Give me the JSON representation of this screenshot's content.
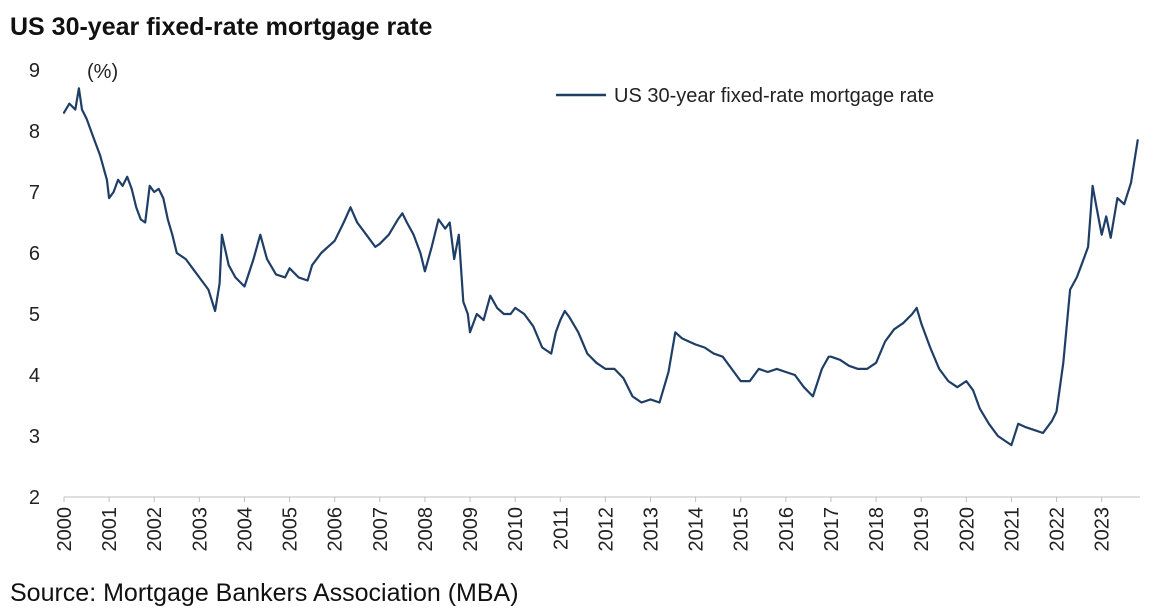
{
  "chart_data": {
    "type": "line",
    "title": "US 30-year fixed-rate mortgage rate",
    "unit_label": "(%)",
    "source": "Source: Mortgage Bankers Association (MBA)",
    "ylim": [
      2,
      9
    ],
    "y_ticks": [
      2,
      3,
      4,
      5,
      6,
      7,
      8,
      9
    ],
    "xlim": [
      2000,
      2023.85
    ],
    "x_ticks": [
      "2000",
      "2001",
      "2002",
      "2003",
      "2004",
      "2005",
      "2006",
      "2007",
      "2008",
      "2009",
      "2010",
      "2011",
      "2012",
      "2013",
      "2014",
      "2015",
      "2016",
      "2017",
      "2018",
      "2019",
      "2020",
      "2021",
      "2022",
      "2023"
    ],
    "grid": false,
    "legend_position": "top-right",
    "color": "#1f3e66",
    "series": [
      {
        "name": "US 30-year fixed-rate mortgage rate",
        "x": [
          2000.0,
          2000.12,
          2000.25,
          2000.33,
          2000.4,
          2000.5,
          2000.65,
          2000.8,
          2000.95,
          2001.0,
          2001.1,
          2001.2,
          2001.3,
          2001.4,
          2001.5,
          2001.6,
          2001.7,
          2001.8,
          2001.9,
          2002.0,
          2002.1,
          2002.2,
          2002.3,
          2002.4,
          2002.5,
          2002.7,
          2002.9,
          2003.0,
          2003.2,
          2003.35,
          2003.45,
          2003.5,
          2003.65,
          2003.8,
          2004.0,
          2004.2,
          2004.35,
          2004.5,
          2004.7,
          2004.9,
          2005.0,
          2005.2,
          2005.4,
          2005.5,
          2005.7,
          2005.85,
          2006.0,
          2006.2,
          2006.35,
          2006.5,
          2006.7,
          2006.9,
          2007.0,
          2007.2,
          2007.4,
          2007.5,
          2007.6,
          2007.75,
          2007.9,
          2008.0,
          2008.15,
          2008.3,
          2008.45,
          2008.55,
          2008.65,
          2008.75,
          2008.85,
          2008.95,
          2009.0,
          2009.15,
          2009.3,
          2009.45,
          2009.6,
          2009.75,
          2009.9,
          2010.0,
          2010.2,
          2010.4,
          2010.6,
          2010.8,
          2010.9,
          2011.0,
          2011.1,
          2011.2,
          2011.4,
          2011.6,
          2011.8,
          2012.0,
          2012.2,
          2012.4,
          2012.6,
          2012.8,
          2013.0,
          2013.2,
          2013.4,
          2013.55,
          2013.7,
          2013.85,
          2014.0,
          2014.2,
          2014.4,
          2014.6,
          2014.8,
          2015.0,
          2015.2,
          2015.4,
          2015.6,
          2015.8,
          2016.0,
          2016.2,
          2016.4,
          2016.6,
          2016.8,
          2016.95,
          2017.0,
          2017.2,
          2017.4,
          2017.6,
          2017.8,
          2018.0,
          2018.2,
          2018.4,
          2018.6,
          2018.8,
          2018.9,
          2019.0,
          2019.2,
          2019.4,
          2019.6,
          2019.8,
          2020.0,
          2020.15,
          2020.3,
          2020.5,
          2020.7,
          2020.9,
          2021.0,
          2021.15,
          2021.3,
          2021.5,
          2021.7,
          2021.9,
          2022.0,
          2022.15,
          2022.3,
          2022.45,
          2022.55,
          2022.7,
          2022.8,
          2022.9,
          2023.0,
          2023.1,
          2023.2,
          2023.35,
          2023.5,
          2023.65,
          2023.8
        ],
        "values": [
          8.3,
          8.45,
          8.35,
          8.7,
          8.35,
          8.2,
          7.9,
          7.6,
          7.2,
          6.9,
          7.0,
          7.2,
          7.1,
          7.25,
          7.05,
          6.75,
          6.55,
          6.5,
          7.1,
          7.0,
          7.05,
          6.9,
          6.55,
          6.3,
          6.0,
          5.9,
          5.7,
          5.6,
          5.4,
          5.05,
          5.5,
          6.3,
          5.8,
          5.6,
          5.45,
          5.9,
          6.3,
          5.9,
          5.65,
          5.6,
          5.75,
          5.6,
          5.55,
          5.8,
          6.0,
          6.1,
          6.2,
          6.5,
          6.75,
          6.5,
          6.3,
          6.1,
          6.15,
          6.3,
          6.55,
          6.65,
          6.5,
          6.3,
          6.0,
          5.7,
          6.1,
          6.55,
          6.4,
          6.5,
          5.9,
          6.3,
          5.2,
          5.0,
          4.7,
          5.0,
          4.9,
          5.3,
          5.1,
          5.0,
          5.0,
          5.1,
          5.0,
          4.8,
          4.45,
          4.35,
          4.7,
          4.9,
          5.05,
          4.95,
          4.7,
          4.35,
          4.2,
          4.1,
          4.1,
          3.95,
          3.65,
          3.55,
          3.6,
          3.55,
          4.05,
          4.7,
          4.6,
          4.55,
          4.5,
          4.45,
          4.35,
          4.3,
          4.1,
          3.9,
          3.9,
          4.1,
          4.05,
          4.1,
          4.05,
          4.0,
          3.8,
          3.65,
          4.1,
          4.3,
          4.3,
          4.25,
          4.15,
          4.1,
          4.1,
          4.2,
          4.55,
          4.75,
          4.85,
          5.0,
          5.1,
          4.85,
          4.45,
          4.1,
          3.9,
          3.8,
          3.9,
          3.75,
          3.45,
          3.2,
          3.0,
          2.9,
          2.85,
          3.2,
          3.15,
          3.1,
          3.05,
          3.25,
          3.4,
          4.2,
          5.4,
          5.6,
          5.8,
          6.1,
          7.1,
          6.7,
          6.3,
          6.6,
          6.25,
          6.9,
          6.8,
          7.15,
          7.85
        ]
      }
    ]
  }
}
